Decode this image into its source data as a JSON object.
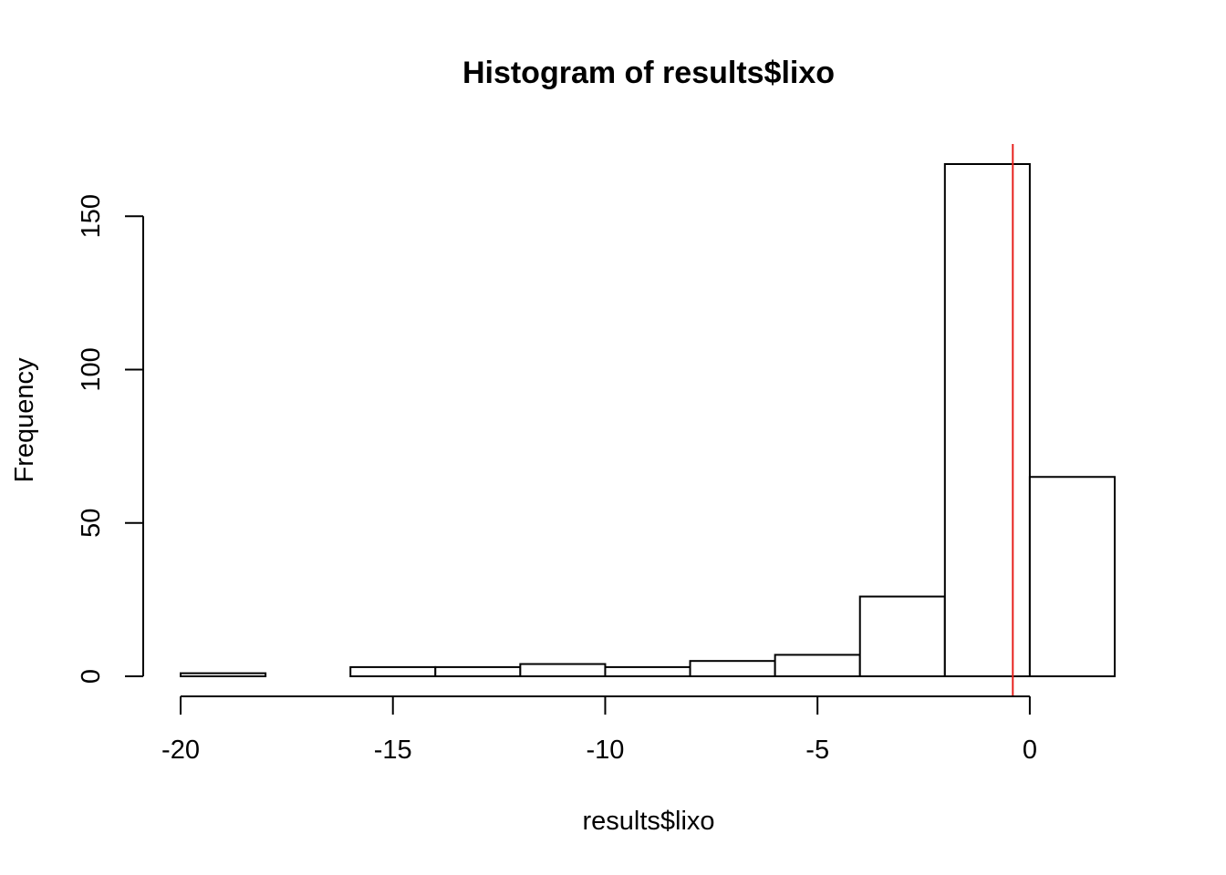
{
  "chart_data": {
    "type": "bar",
    "title": "Histogram of results$lixo",
    "xlabel": "results$lixo",
    "ylabel": "Frequency",
    "bins": [
      {
        "from": -20,
        "to": -18,
        "count": 1
      },
      {
        "from": -18,
        "to": -16,
        "count": 0
      },
      {
        "from": -16,
        "to": -14,
        "count": 3
      },
      {
        "from": -14,
        "to": -12,
        "count": 3
      },
      {
        "from": -12,
        "to": -10,
        "count": 4
      },
      {
        "from": -10,
        "to": -8,
        "count": 3
      },
      {
        "from": -8,
        "to": -6,
        "count": 5
      },
      {
        "from": -6,
        "to": -4,
        "count": 7
      },
      {
        "from": -4,
        "to": -2,
        "count": 26
      },
      {
        "from": -2,
        "to": 0,
        "count": 167
      },
      {
        "from": 0,
        "to": 2,
        "count": 65
      }
    ],
    "x_ticks": [
      "-20",
      "-15",
      "-10",
      "-5",
      "0"
    ],
    "y_ticks": [
      "0",
      "50",
      "100",
      "150"
    ],
    "xlim": [
      -20,
      2
    ],
    "ylim": [
      0,
      167
    ],
    "grid": false,
    "reference_line": {
      "x": -0.4,
      "color": "#e8231f"
    }
  }
}
